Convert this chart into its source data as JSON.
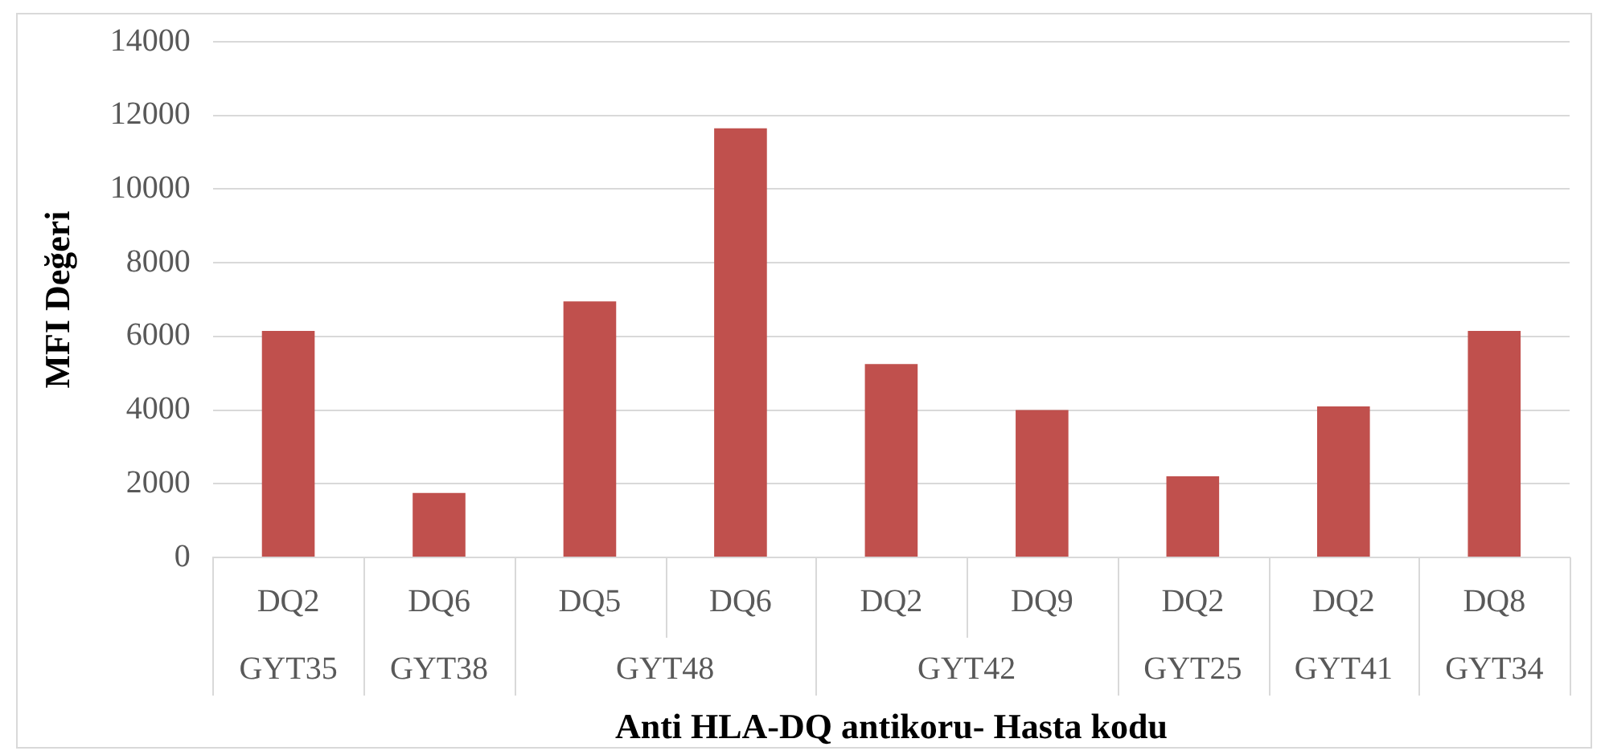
{
  "chart_data": {
    "type": "bar",
    "xlabel": "Anti HLA-DQ antikoru- Hasta kodu",
    "ylabel": "MFI Değeri",
    "categories": [
      "DQ2",
      "DQ6",
      "DQ5",
      "DQ6",
      "DQ2",
      "DQ9",
      "DQ2",
      "DQ2",
      "DQ8"
    ],
    "values": [
      6150,
      1750,
      6950,
      11650,
      5250,
      4000,
      2200,
      4100,
      6150
    ],
    "color": "#c0504d",
    "ylim": [
      0,
      14000
    ],
    "yticks": [
      0,
      2000,
      4000,
      6000,
      8000,
      10000,
      12000,
      14000
    ],
    "grid": "y",
    "legend": false,
    "annotations": [
      "GYT35",
      "GYT38",
      "GYT48",
      "GYT42",
      "GYT25",
      "GYT41",
      "GYT34"
    ]
  }
}
